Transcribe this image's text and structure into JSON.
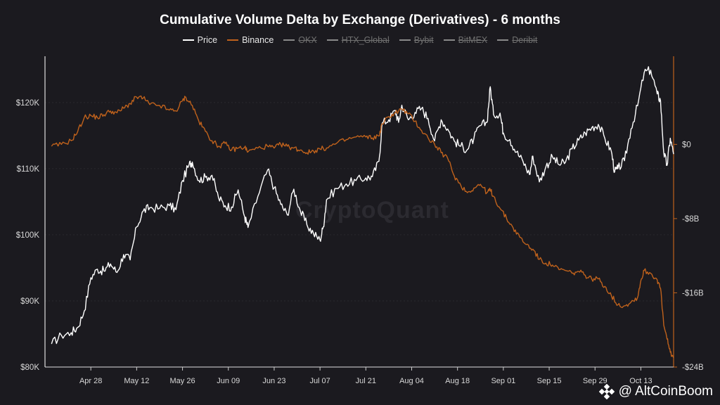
{
  "chart_data": {
    "type": "line",
    "title": "Cumulative Volume Delta by Exchange (Derivatives) - 6 months",
    "legend": [
      {
        "name": "Price",
        "color": "#ffffff",
        "visible": true
      },
      {
        "name": "Binance",
        "color": "#c0621c",
        "visible": true
      },
      {
        "name": "OKX",
        "color": "#8a8a8a",
        "visible": false
      },
      {
        "name": "HTX_Global",
        "color": "#8a8a8a",
        "visible": false
      },
      {
        "name": "Bybit",
        "color": "#8a8a8a",
        "visible": false
      },
      {
        "name": "BitMEX",
        "color": "#8a8a8a",
        "visible": false
      },
      {
        "name": "Deribit",
        "color": "#8a8a8a",
        "visible": false
      }
    ],
    "x_tick_labels": [
      "Apr 28",
      "May 12",
      "May 26",
      "Jun 09",
      "Jun 23",
      "Jul 07",
      "Jul 21",
      "Aug 04",
      "Aug 18",
      "Sep 01",
      "Sep 15",
      "Sep 29",
      "Oct 13"
    ],
    "y_left_ticks": [
      "$80K",
      "$90K",
      "$100K",
      "$110K",
      "$120K"
    ],
    "y_left_range": [
      80000,
      127000
    ],
    "y_right_ticks": [
      "$0",
      "-$8B",
      "-$16B",
      "-$24B"
    ],
    "y_right_range": [
      -24,
      9.5
    ],
    "x_range_days": [
      -14,
      178
    ],
    "series": [
      {
        "name": "Price",
        "axis": "left",
        "points": [
          [
            -12,
            83500
          ],
          [
            -9,
            84800
          ],
          [
            -6,
            85200
          ],
          [
            -4,
            86000
          ],
          [
            -2,
            88500
          ],
          [
            0,
            93500
          ],
          [
            2,
            94800
          ],
          [
            4,
            94500
          ],
          [
            6,
            95600
          ],
          [
            8,
            94300
          ],
          [
            10,
            97000
          ],
          [
            12,
            96200
          ],
          [
            14,
            101200
          ],
          [
            16,
            103600
          ],
          [
            18,
            104100
          ],
          [
            21,
            104000
          ],
          [
            24,
            104400
          ],
          [
            26,
            103800
          ],
          [
            28,
            108200
          ],
          [
            30,
            110600
          ],
          [
            31,
            111000
          ],
          [
            33,
            108200
          ],
          [
            35,
            108700
          ],
          [
            37,
            109000
          ],
          [
            39,
            105600
          ],
          [
            41,
            104400
          ],
          [
            43,
            104200
          ],
          [
            45,
            106800
          ],
          [
            47,
            102700
          ],
          [
            48,
            101100
          ],
          [
            51,
            105800
          ],
          [
            54,
            109800
          ],
          [
            56,
            107100
          ],
          [
            58,
            104600
          ],
          [
            60,
            103000
          ],
          [
            62,
            106900
          ],
          [
            64,
            103600
          ],
          [
            66,
            101500
          ],
          [
            68,
            100200
          ],
          [
            70,
            99200
          ],
          [
            71,
            101200
          ],
          [
            72,
            105300
          ],
          [
            75,
            107000
          ],
          [
            78,
            107700
          ],
          [
            81,
            108200
          ],
          [
            84,
            108600
          ],
          [
            86,
            108800
          ],
          [
            88,
            111100
          ],
          [
            89,
            116900
          ],
          [
            91,
            117400
          ],
          [
            93,
            118800
          ],
          [
            94,
            117000
          ],
          [
            95,
            119600
          ],
          [
            97,
            117400
          ],
          [
            99,
            118500
          ],
          [
            101,
            119100
          ],
          [
            103,
            117600
          ],
          [
            105,
            114200
          ],
          [
            107,
            117400
          ],
          [
            109,
            116000
          ],
          [
            111,
            114200
          ],
          [
            113,
            113400
          ],
          [
            115,
            112900
          ],
          [
            117,
            114600
          ],
          [
            119,
            116500
          ],
          [
            121,
            117000
          ],
          [
            122,
            122400
          ],
          [
            123,
            118200
          ],
          [
            125,
            118400
          ],
          [
            126,
            115400
          ],
          [
            128,
            114400
          ],
          [
            130,
            112500
          ],
          [
            132,
            111100
          ],
          [
            134,
            109100
          ],
          [
            135,
            111900
          ],
          [
            137,
            108000
          ],
          [
            139,
            110300
          ],
          [
            141,
            111800
          ],
          [
            143,
            110600
          ],
          [
            145,
            111000
          ],
          [
            147,
            113000
          ],
          [
            149,
            114300
          ],
          [
            151,
            115400
          ],
          [
            153,
            116200
          ],
          [
            155,
            116700
          ],
          [
            157,
            114600
          ],
          [
            159,
            112600
          ],
          [
            160,
            109500
          ],
          [
            161,
            110000
          ],
          [
            163,
            111200
          ],
          [
            165,
            116000
          ],
          [
            167,
            119500
          ],
          [
            169,
            124500
          ],
          [
            171,
            124900
          ],
          [
            173,
            121300
          ],
          [
            174,
            120300
          ],
          [
            175,
            112400
          ],
          [
            176,
            110500
          ],
          [
            177,
            114600
          ],
          [
            178,
            112200
          ]
        ]
      },
      {
        "name": "Binance",
        "axis": "right",
        "points": [
          [
            -12,
            -0.2
          ],
          [
            -9,
            0.0
          ],
          [
            -6,
            0.4
          ],
          [
            -4,
            1.4
          ],
          [
            -2,
            2.9
          ],
          [
            0,
            3.1
          ],
          [
            2,
            2.9
          ],
          [
            4,
            3.2
          ],
          [
            6,
            3.6
          ],
          [
            8,
            3.4
          ],
          [
            10,
            3.9
          ],
          [
            12,
            4.4
          ],
          [
            14,
            5.1
          ],
          [
            16,
            5.0
          ],
          [
            18,
            4.3
          ],
          [
            21,
            4.2
          ],
          [
            24,
            3.7
          ],
          [
            26,
            3.6
          ],
          [
            28,
            4.7
          ],
          [
            29,
            5.1
          ],
          [
            31,
            4.2
          ],
          [
            33,
            2.5
          ],
          [
            35,
            1.4
          ],
          [
            37,
            0.4
          ],
          [
            39,
            -0.2
          ],
          [
            41,
            0.1
          ],
          [
            43,
            -0.6
          ],
          [
            45,
            -0.4
          ],
          [
            47,
            -0.3
          ],
          [
            48,
            -0.8
          ],
          [
            51,
            -0.4
          ],
          [
            54,
            -0.2
          ],
          [
            56,
            -0.4
          ],
          [
            58,
            0.0
          ],
          [
            60,
            -0.2
          ],
          [
            62,
            -0.4
          ],
          [
            64,
            -0.6
          ],
          [
            66,
            -0.9
          ],
          [
            68,
            -0.7
          ],
          [
            70,
            -0.5
          ],
          [
            72,
            -0.4
          ],
          [
            75,
            0.1
          ],
          [
            78,
            0.5
          ],
          [
            81,
            0.8
          ],
          [
            84,
            0.8
          ],
          [
            86,
            0.7
          ],
          [
            88,
            0.9
          ],
          [
            89,
            2.2
          ],
          [
            91,
            3.0
          ],
          [
            93,
            3.4
          ],
          [
            95,
            3.8
          ],
          [
            97,
            3.3
          ],
          [
            99,
            2.5
          ],
          [
            101,
            1.5
          ],
          [
            103,
            0.7
          ],
          [
            105,
            0.0
          ],
          [
            107,
            -0.9
          ],
          [
            109,
            -1.5
          ],
          [
            111,
            -3.4
          ],
          [
            113,
            -4.4
          ],
          [
            115,
            -5.2
          ],
          [
            117,
            -4.7
          ],
          [
            119,
            -4.3
          ],
          [
            121,
            -5.2
          ],
          [
            122,
            -4.9
          ],
          [
            123,
            -5.6
          ],
          [
            125,
            -6.9
          ],
          [
            127,
            -8.0
          ],
          [
            129,
            -9.0
          ],
          [
            131,
            -10.0
          ],
          [
            133,
            -10.8
          ],
          [
            135,
            -11.3
          ],
          [
            137,
            -12.4
          ],
          [
            139,
            -12.8
          ],
          [
            141,
            -13.0
          ],
          [
            143,
            -13.5
          ],
          [
            145,
            -13.6
          ],
          [
            147,
            -13.9
          ],
          [
            149,
            -13.7
          ],
          [
            151,
            -14.1
          ],
          [
            153,
            -14.5
          ],
          [
            155,
            -14.5
          ],
          [
            157,
            -15.3
          ],
          [
            159,
            -16.3
          ],
          [
            161,
            -17.3
          ],
          [
            163,
            -17.4
          ],
          [
            165,
            -17.0
          ],
          [
            167,
            -16.5
          ],
          [
            168,
            -14.7
          ],
          [
            169,
            -13.6
          ],
          [
            171,
            -13.9
          ],
          [
            173,
            -14.6
          ],
          [
            174,
            -15.5
          ],
          [
            175,
            -19.5
          ],
          [
            176,
            -21.0
          ],
          [
            177,
            -22.4
          ],
          [
            178,
            -23.0
          ]
        ]
      }
    ]
  },
  "watermark": {
    "handle": "@ AltCoinBoom",
    "chart_brand": "CryptoQuant",
    "brand_color": "#ffffff"
  }
}
